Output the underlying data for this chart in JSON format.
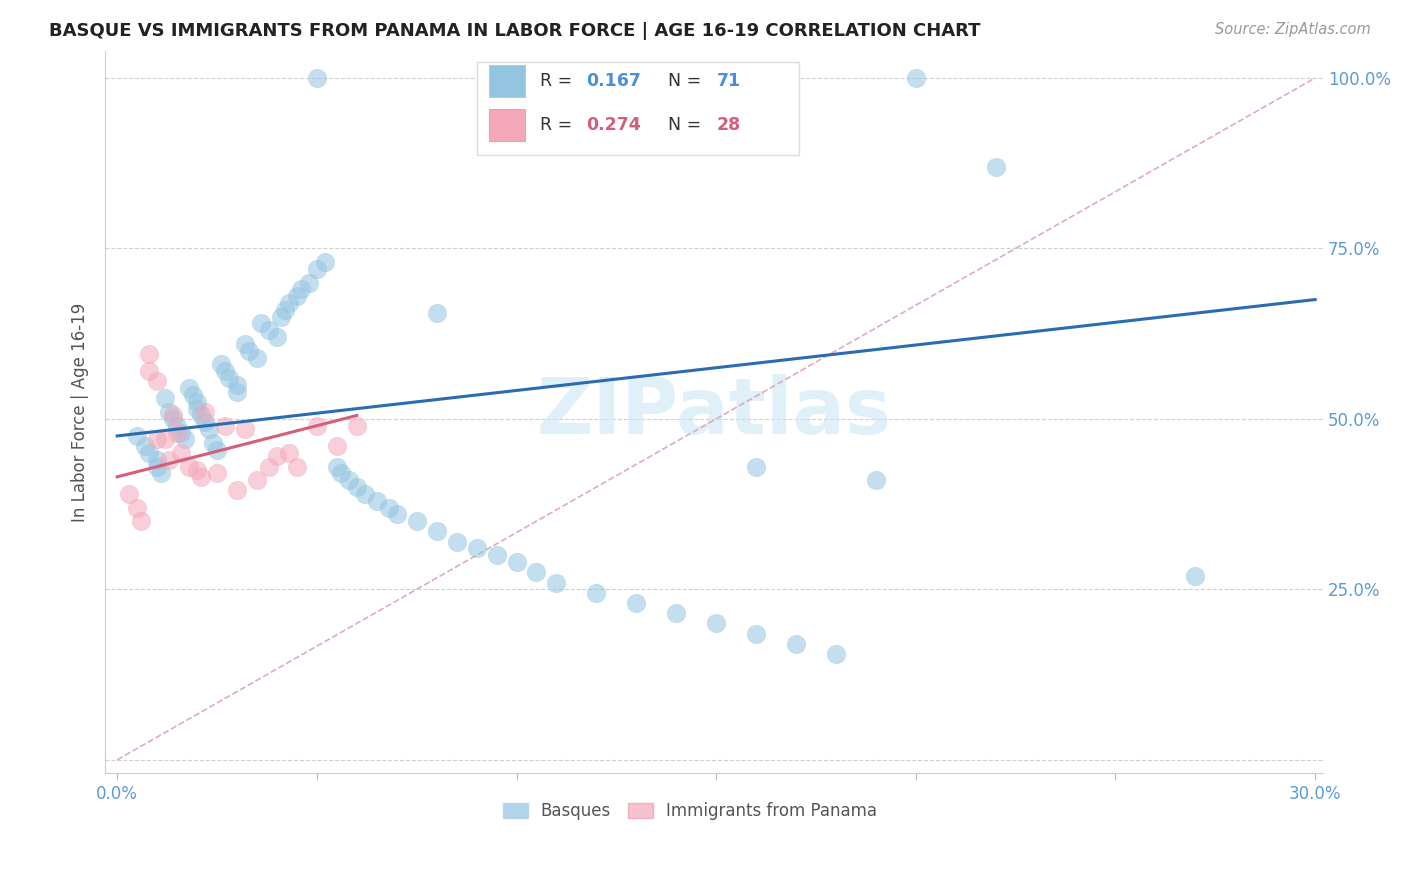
{
  "title": "BASQUE VS IMMIGRANTS FROM PANAMA IN LABOR FORCE | AGE 16-19 CORRELATION CHART",
  "source": "Source: ZipAtlas.com",
  "ylabel": "In Labor Force | Age 16-19",
  "xlim": [
    0.0,
    0.3
  ],
  "ylim": [
    0.0,
    1.0
  ],
  "xtick_positions": [
    0.0,
    0.05,
    0.1,
    0.15,
    0.2,
    0.25,
    0.3
  ],
  "xtick_labels": [
    "0.0%",
    "",
    "",
    "",
    "",
    "",
    "30.0%"
  ],
  "ytick_positions": [
    0.0,
    0.25,
    0.5,
    0.75,
    1.0
  ],
  "ytick_labels_right": [
    "",
    "25.0%",
    "50.0%",
    "75.0%",
    "100.0%"
  ],
  "blue_color": "#93c4e0",
  "pink_color": "#f4a7b9",
  "line_blue": "#2b6cb0",
  "line_pink": "#d45f7a",
  "diag_color": "#d9a0a8",
  "watermark": "ZIPatlas",
  "label_blue_r": "0.167",
  "label_blue_n": "71",
  "label_pink_r": "0.274",
  "label_pink_n": "28",
  "blue_x": [
    0.005,
    0.007,
    0.008,
    0.01,
    0.01,
    0.011,
    0.012,
    0.013,
    0.014,
    0.015,
    0.016,
    0.017,
    0.018,
    0.019,
    0.02,
    0.02,
    0.021,
    0.022,
    0.023,
    0.024,
    0.025,
    0.026,
    0.027,
    0.028,
    0.03,
    0.03,
    0.032,
    0.033,
    0.035,
    0.036,
    0.038,
    0.04,
    0.041,
    0.042,
    0.043,
    0.045,
    0.046,
    0.048,
    0.05,
    0.052,
    0.055,
    0.056,
    0.058,
    0.06,
    0.062,
    0.065,
    0.068,
    0.07,
    0.075,
    0.08,
    0.085,
    0.09,
    0.095,
    0.1,
    0.105,
    0.11,
    0.12,
    0.13,
    0.14,
    0.15,
    0.16,
    0.17,
    0.18,
    0.05,
    0.14,
    0.2,
    0.22,
    0.27,
    0.08,
    0.16,
    0.19
  ],
  "blue_y": [
    0.475,
    0.46,
    0.45,
    0.44,
    0.43,
    0.42,
    0.53,
    0.51,
    0.5,
    0.49,
    0.48,
    0.47,
    0.545,
    0.535,
    0.525,
    0.515,
    0.505,
    0.495,
    0.485,
    0.465,
    0.455,
    0.58,
    0.57,
    0.56,
    0.55,
    0.54,
    0.61,
    0.6,
    0.59,
    0.64,
    0.63,
    0.62,
    0.65,
    0.66,
    0.67,
    0.68,
    0.69,
    0.7,
    0.72,
    0.73,
    0.43,
    0.42,
    0.41,
    0.4,
    0.39,
    0.38,
    0.37,
    0.36,
    0.35,
    0.335,
    0.32,
    0.31,
    0.3,
    0.29,
    0.275,
    0.26,
    0.245,
    0.23,
    0.215,
    0.2,
    0.185,
    0.17,
    0.155,
    1.0,
    1.0,
    1.0,
    0.87,
    0.27,
    0.655,
    0.43,
    0.41
  ],
  "pink_x": [
    0.003,
    0.005,
    0.006,
    0.008,
    0.008,
    0.01,
    0.01,
    0.012,
    0.013,
    0.014,
    0.015,
    0.016,
    0.018,
    0.02,
    0.021,
    0.022,
    0.025,
    0.027,
    0.03,
    0.032,
    0.035,
    0.038,
    0.04,
    0.043,
    0.045,
    0.05,
    0.055,
    0.06
  ],
  "pink_y": [
    0.39,
    0.37,
    0.35,
    0.595,
    0.57,
    0.555,
    0.47,
    0.47,
    0.44,
    0.505,
    0.48,
    0.45,
    0.43,
    0.425,
    0.415,
    0.51,
    0.42,
    0.49,
    0.395,
    0.485,
    0.41,
    0.43,
    0.445,
    0.45,
    0.43,
    0.49,
    0.46,
    0.49
  ],
  "blue_line_x": [
    0.0,
    0.3
  ],
  "blue_line_y": [
    0.475,
    0.675
  ],
  "pink_line_x": [
    0.0,
    0.06
  ],
  "pink_line_y": [
    0.415,
    0.505
  ]
}
